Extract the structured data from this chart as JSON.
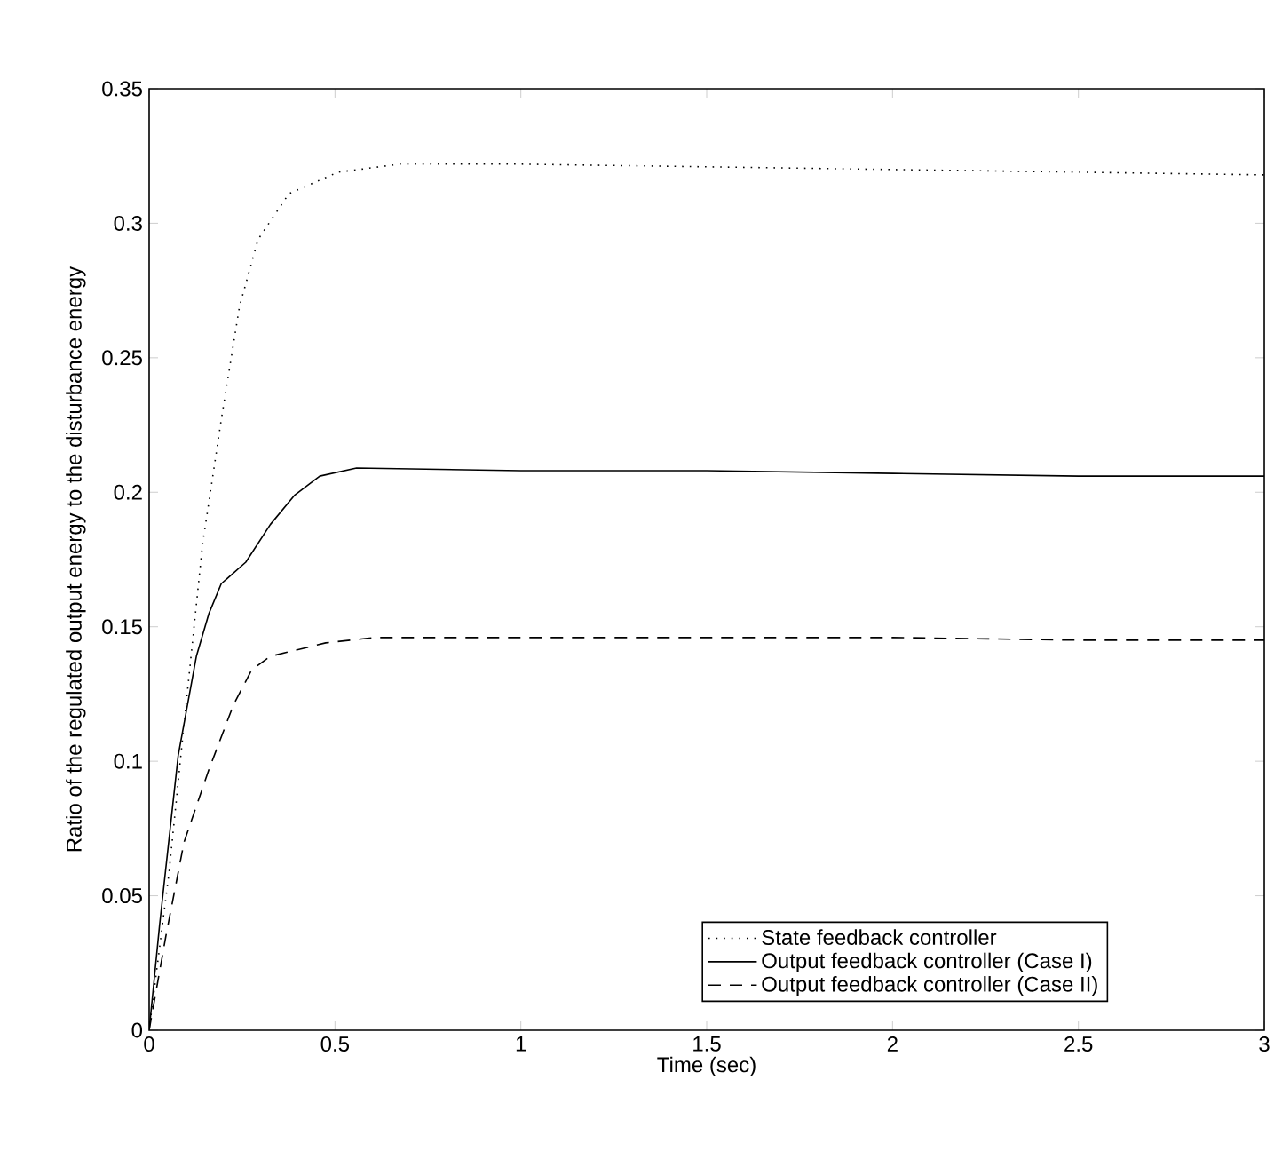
{
  "chart_data": {
    "type": "line",
    "xlabel": "Time (sec)",
    "ylabel": "Ratio of the regulated output energy to the disturbance energy",
    "xlim": [
      0,
      3
    ],
    "ylim": [
      0,
      0.35
    ],
    "xticks": [
      0,
      0.5,
      1,
      1.5,
      2,
      2.5,
      3
    ],
    "yticks": [
      0,
      0.05,
      0.1,
      0.15,
      0.2,
      0.25,
      0.3,
      0.35
    ],
    "legend": "bottom right",
    "marker": "none",
    "series": [
      {
        "name": "State feedback controller",
        "color": "#000000",
        "line_style": "dotted",
        "x": [
          0,
          0.053,
          0.094,
          0.144,
          0.194,
          0.243,
          0.293,
          0.376,
          0.508,
          0.674,
          1,
          1.5,
          2,
          2.5,
          3
        ],
        "values": [
          0,
          0.058,
          0.114,
          0.181,
          0.227,
          0.269,
          0.294,
          0.311,
          0.319,
          0.322,
          0.322,
          0.321,
          0.32,
          0.319,
          0.318
        ]
      },
      {
        "name": "Output feedback controller (Case I)",
        "color": "#000000",
        "line_style": "solid",
        "x": [
          0,
          0.028,
          0.078,
          0.127,
          0.161,
          0.194,
          0.26,
          0.326,
          0.392,
          0.459,
          0.558,
          1,
          1.5,
          2,
          2.5,
          3
        ],
        "values": [
          0,
          0.039,
          0.102,
          0.139,
          0.155,
          0.166,
          0.174,
          0.188,
          0.199,
          0.206,
          0.209,
          0.208,
          0.208,
          0.207,
          0.206,
          0.206
        ]
      },
      {
        "name": "Output feedback controller (Case II)",
        "color": "#000000",
        "line_style": "dashed",
        "x": [
          0,
          0.045,
          0.094,
          0.161,
          0.227,
          0.276,
          0.326,
          0.475,
          0.608,
          1,
          1.5,
          2,
          2.5,
          3
        ],
        "values": [
          0,
          0.035,
          0.07,
          0.097,
          0.121,
          0.134,
          0.139,
          0.144,
          0.146,
          0.146,
          0.146,
          0.146,
          0.145,
          0.145
        ]
      }
    ]
  }
}
